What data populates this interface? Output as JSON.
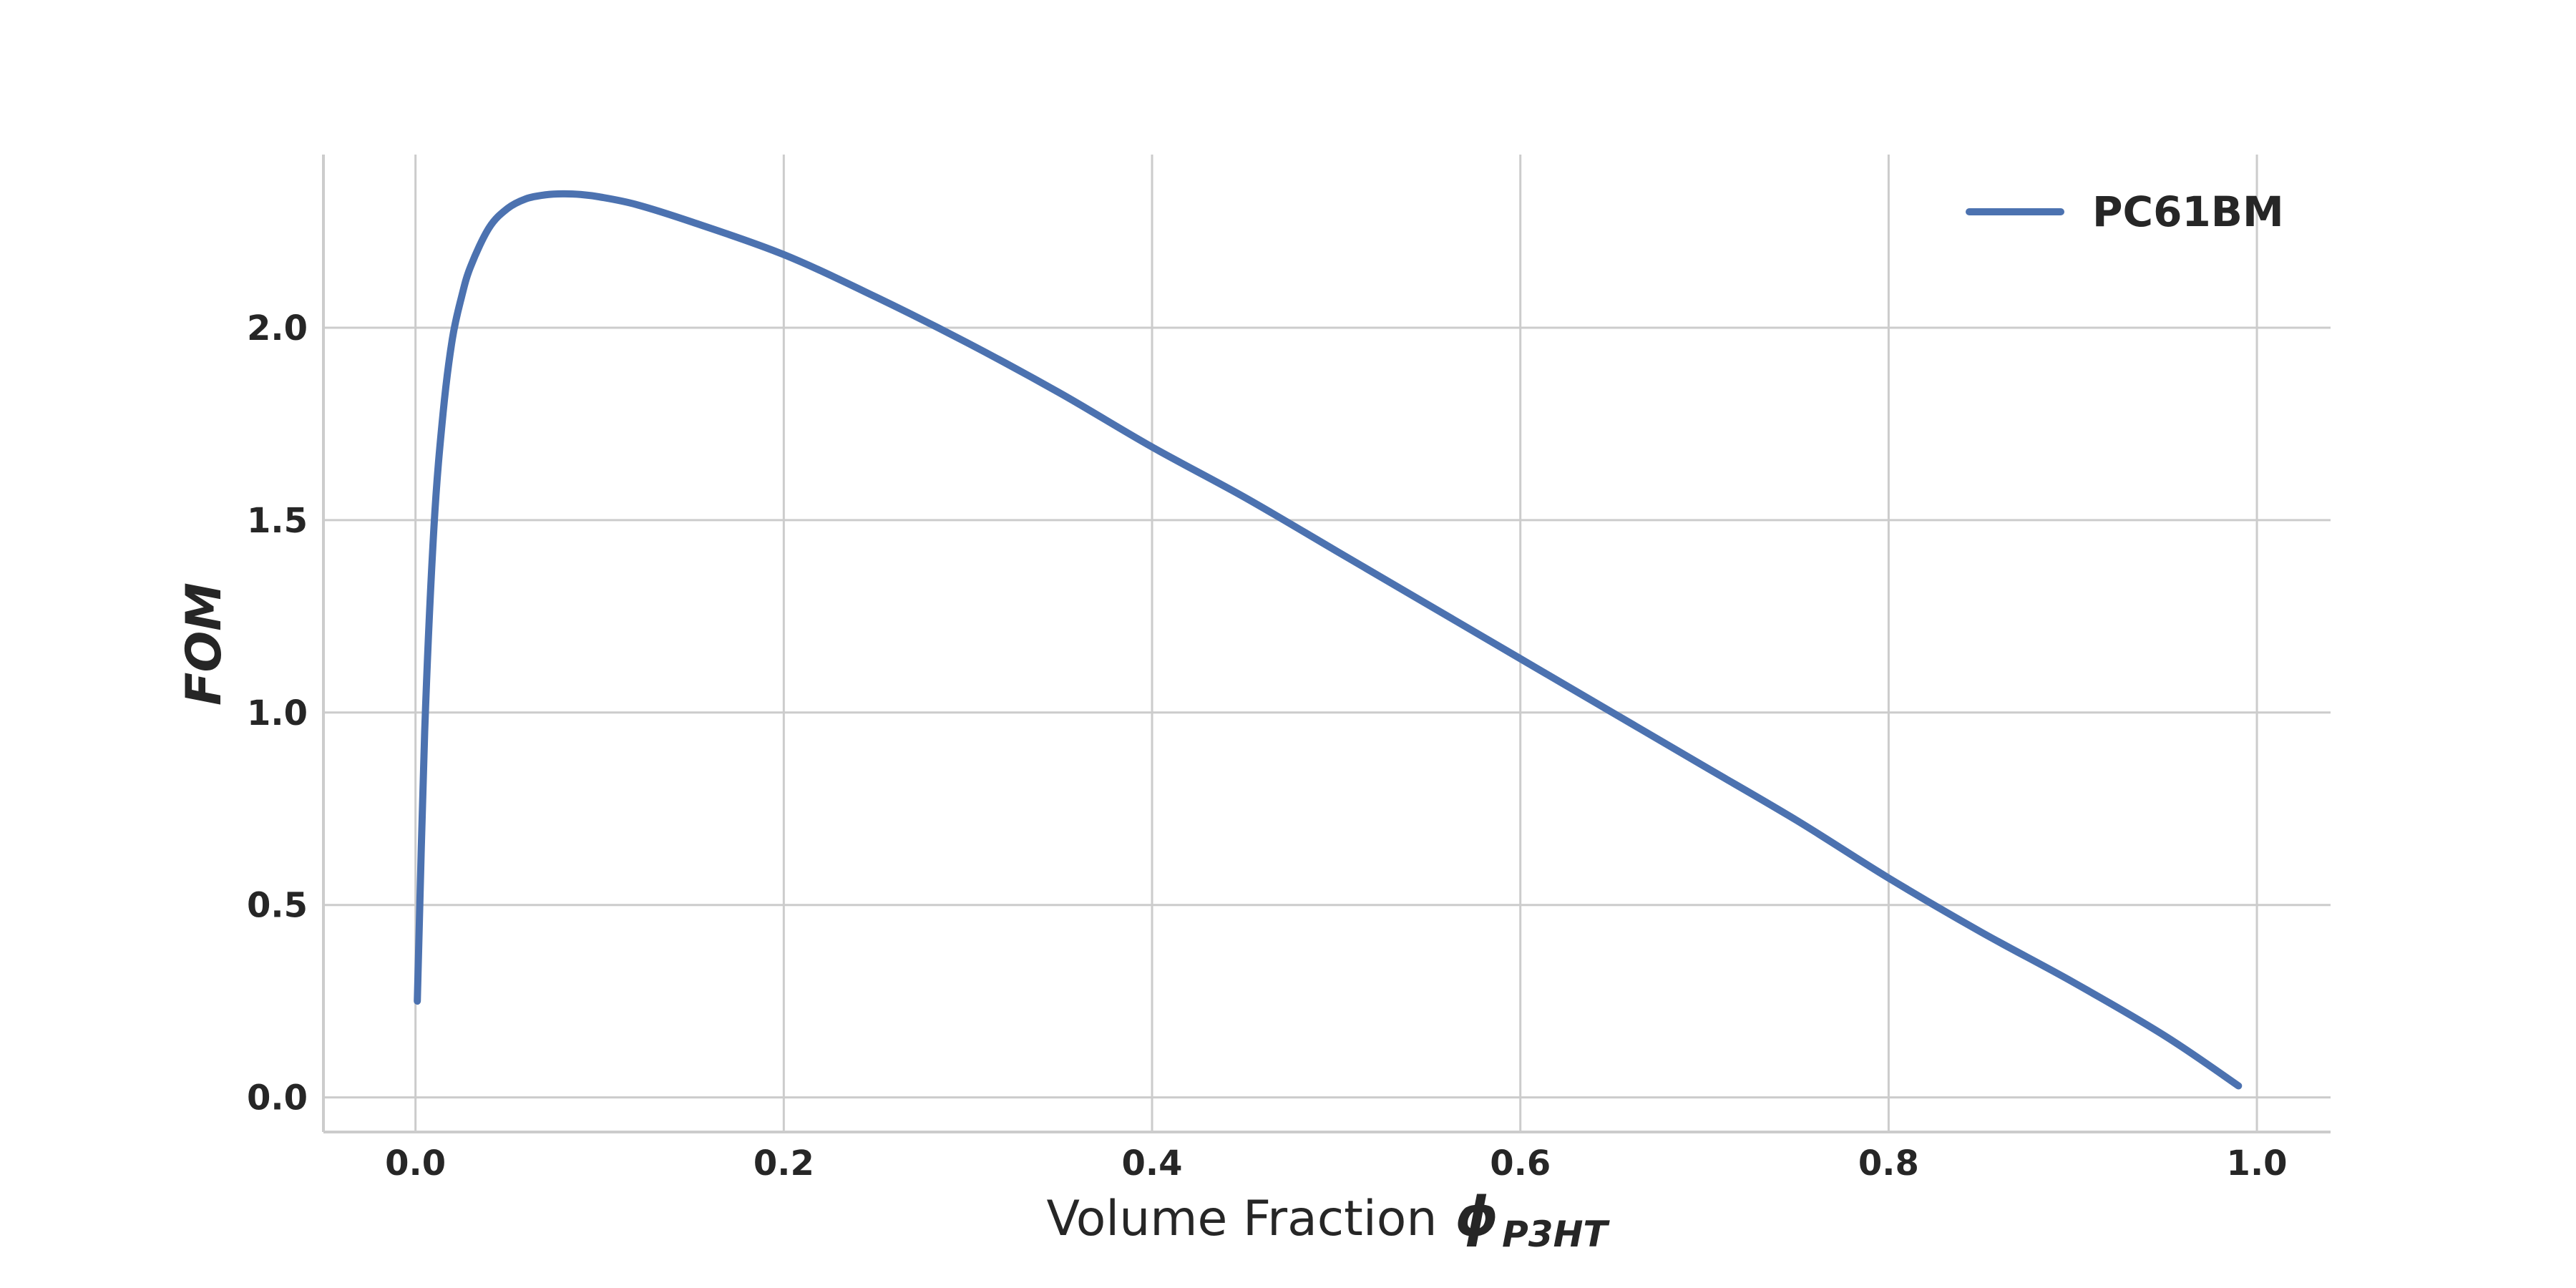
{
  "chart_data": {
    "type": "line",
    "title": "",
    "xlabel": {
      "text": "Volume Fraction",
      "symbol": "ϕ",
      "subscript": "P3HT"
    },
    "ylabel": "FOM",
    "xlim": [
      -0.05,
      1.04
    ],
    "ylim": [
      -0.09,
      2.45
    ],
    "xticks": [
      0.0,
      0.2,
      0.4,
      0.6,
      0.8,
      1.0
    ],
    "xtick_labels": [
      "0.0",
      "0.2",
      "0.4",
      "0.6",
      "0.8",
      "1.0"
    ],
    "yticks": [
      0.0,
      0.5,
      1.0,
      1.5,
      2.0
    ],
    "ytick_labels": [
      "0.0",
      "0.5",
      "1.0",
      "1.5",
      "2.0"
    ],
    "grid": true,
    "legend_position": "upper right",
    "series": [
      {
        "name": "PC61BM",
        "color": "#4c72b0",
        "x": [
          0.001,
          0.005,
          0.01,
          0.015,
          0.02,
          0.025,
          0.03,
          0.04,
          0.05,
          0.06,
          0.07,
          0.08,
          0.09,
          0.1,
          0.12,
          0.15,
          0.2,
          0.25,
          0.3,
          0.35,
          0.4,
          0.45,
          0.5,
          0.55,
          0.6,
          0.65,
          0.7,
          0.75,
          0.8,
          0.85,
          0.9,
          0.95,
          0.99
        ],
        "y": [
          0.25,
          0.95,
          1.48,
          1.78,
          1.97,
          2.08,
          2.16,
          2.26,
          2.31,
          2.335,
          2.345,
          2.348,
          2.346,
          2.34,
          2.32,
          2.275,
          2.19,
          2.08,
          1.96,
          1.83,
          1.69,
          1.56,
          1.42,
          1.28,
          1.14,
          1.0,
          0.86,
          0.72,
          0.57,
          0.43,
          0.3,
          0.16,
          0.03
        ]
      }
    ]
  }
}
